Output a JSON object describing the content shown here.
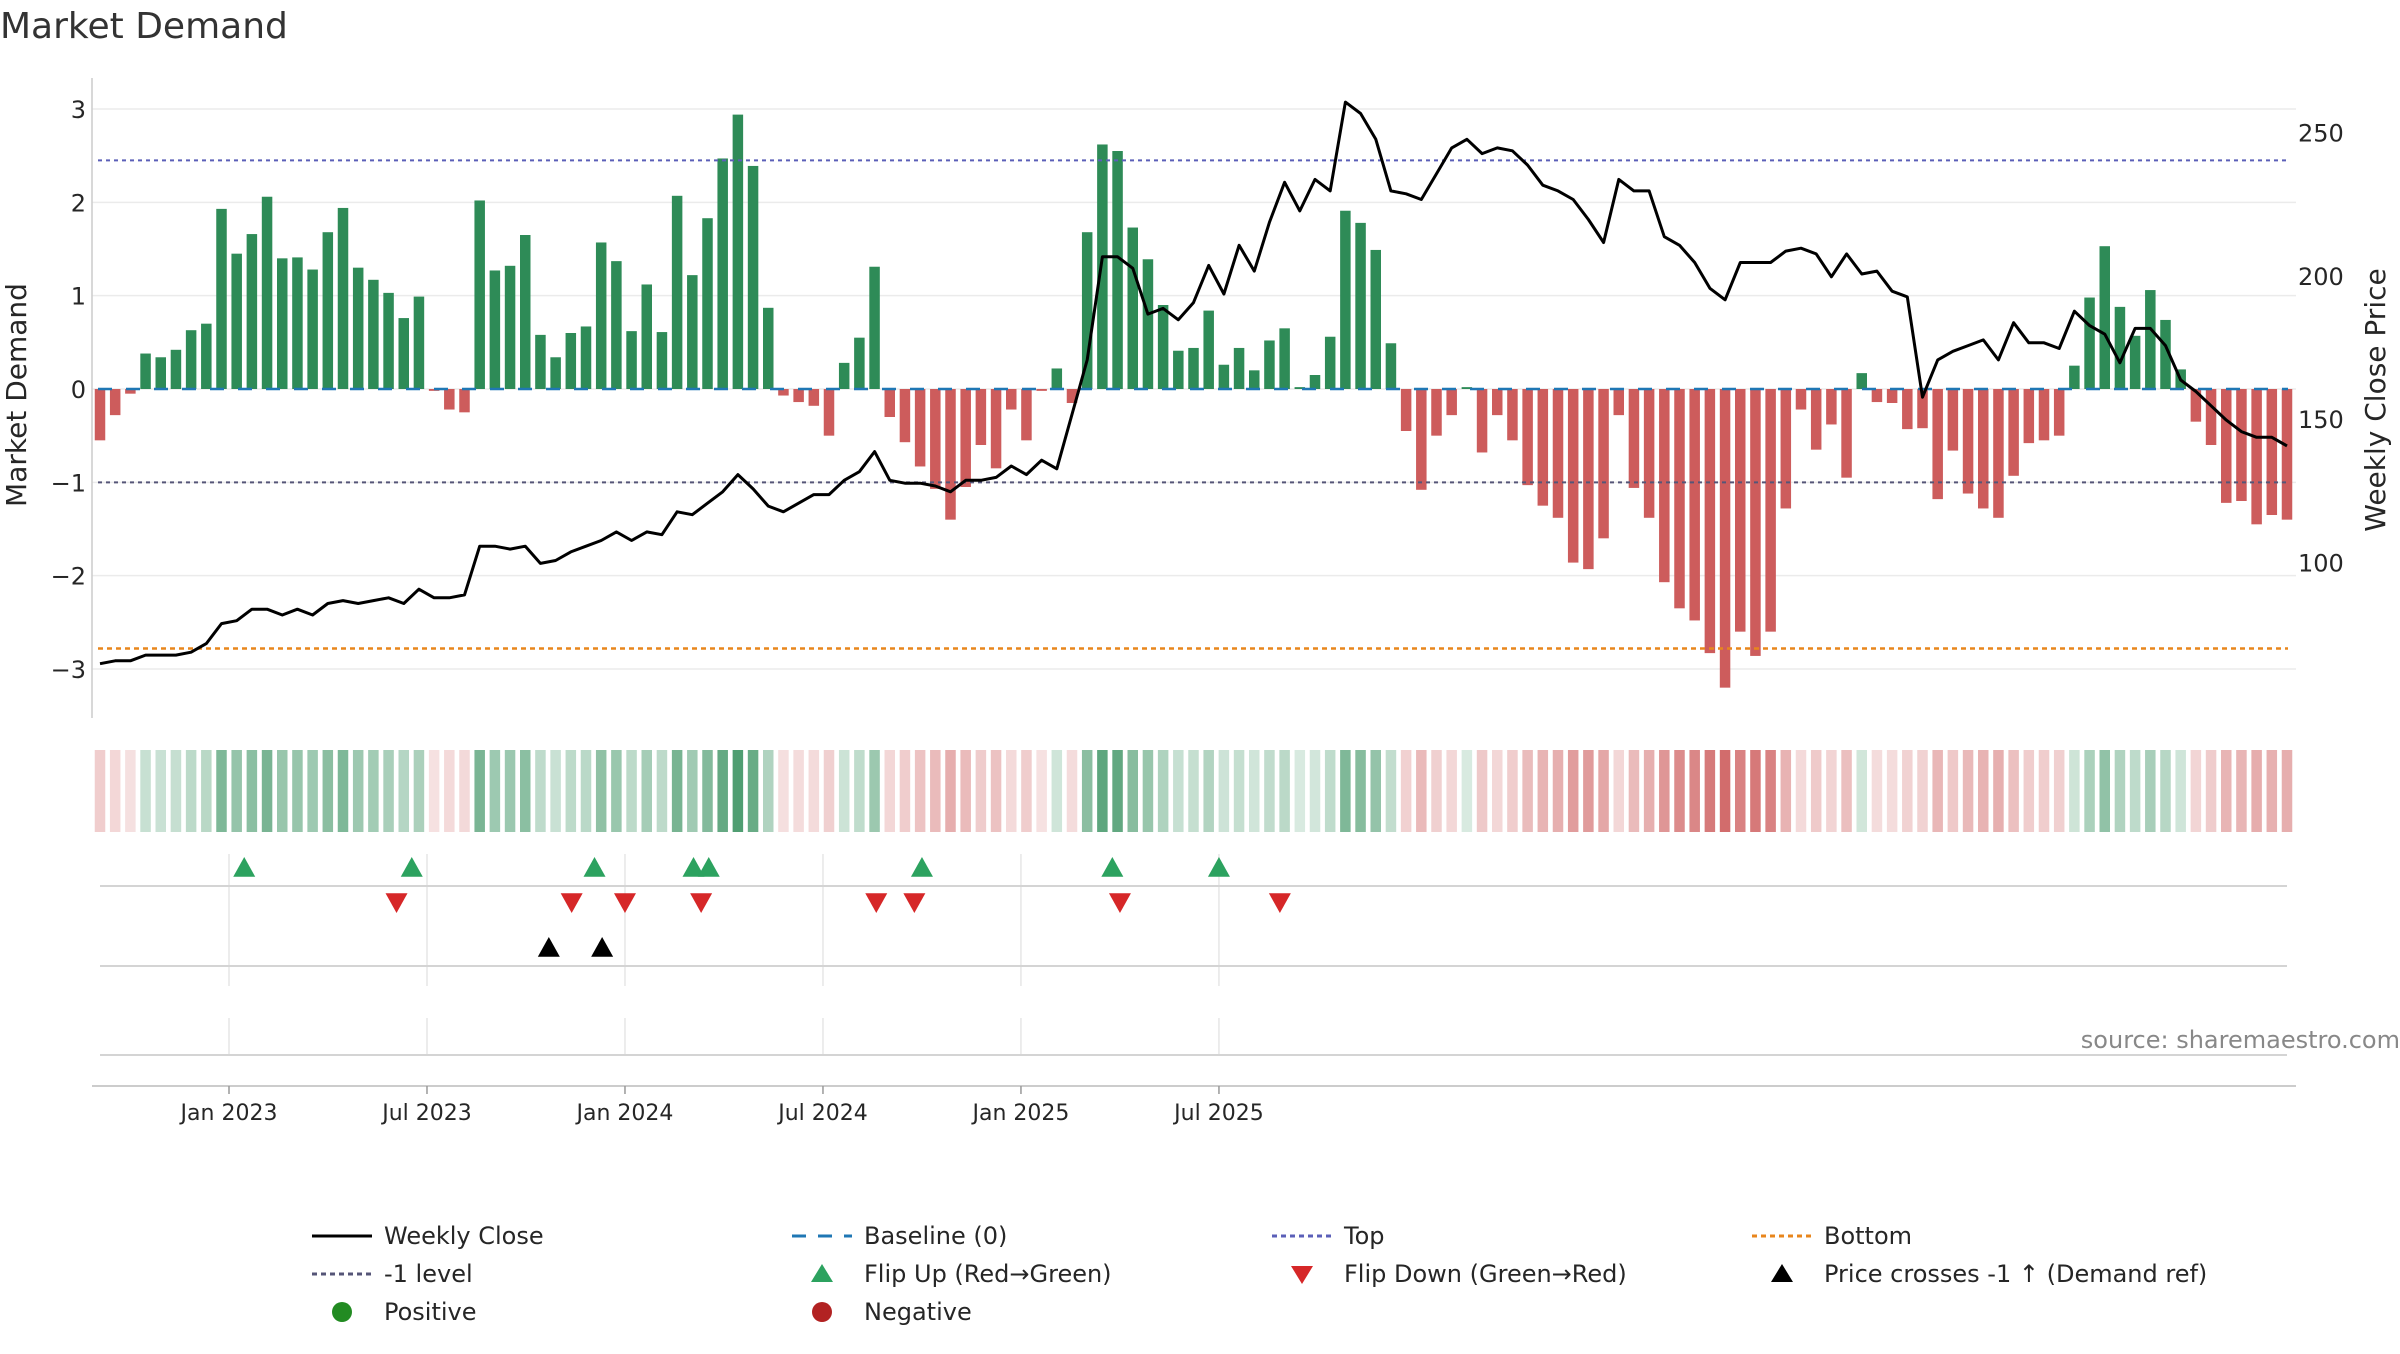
{
  "title": "Market Demand",
  "source": "source: sharemaestro.com",
  "chart_data": {
    "type": "bar",
    "title": "Market Demand",
    "ylabel_left": "Market Demand",
    "ylabel_right": "Weekly Close Price",
    "ylim_left": [
      -3.3,
      3.3
    ],
    "ylim_right": [
      60,
      268
    ],
    "yticks_left": [
      3,
      2,
      1,
      0,
      -1,
      -2,
      -3
    ],
    "ytick_labels_left": [
      "3",
      "2",
      "1",
      "0",
      "−1",
      "−2",
      "−3"
    ],
    "yticks_right": [
      250,
      200,
      150,
      100
    ],
    "ytick_labels_right": [
      "250",
      "200",
      "150",
      "100"
    ],
    "x_tick_weeks": [
      0,
      26,
      52,
      78,
      104,
      130
    ],
    "x_tick_labels": [
      "Jan 2023",
      "Jul 2023",
      "Jan 2024",
      "Jul 2024",
      "Jan 2025",
      "Jul 2025"
    ],
    "reference_lines": {
      "top": 2.45,
      "minus_one": -1,
      "bottom": -2.78,
      "baseline": 0
    },
    "demand": [
      -0.55,
      -0.28,
      -0.05,
      0.38,
      0.34,
      0.42,
      0.63,
      0.7,
      1.93,
      1.45,
      1.66,
      2.06,
      1.4,
      1.41,
      1.28,
      1.68,
      1.94,
      1.3,
      1.17,
      1.03,
      0.76,
      0.99,
      -0.02,
      -0.22,
      -0.25,
      2.02,
      1.27,
      1.32,
      1.65,
      0.58,
      0.34,
      0.6,
      0.67,
      1.57,
      1.37,
      0.62,
      1.12,
      0.61,
      2.07,
      1.22,
      1.83,
      2.47,
      2.94,
      2.39,
      0.87,
      -0.07,
      -0.14,
      -0.18,
      -0.5,
      0.28,
      0.55,
      1.31,
      -0.3,
      -0.57,
      -0.83,
      -1.07,
      -1.4,
      -1.05,
      -0.6,
      -0.85,
      -0.22,
      -0.55,
      -0.02,
      0.22,
      -0.15,
      1.68,
      2.62,
      2.55,
      1.73,
      1.39,
      0.9,
      0.41,
      0.44,
      0.84,
      0.26,
      0.44,
      0.2,
      0.52,
      0.65,
      0.02,
      0.15,
      0.56,
      1.91,
      1.78,
      1.49,
      0.49,
      -0.45,
      -1.08,
      -0.5,
      -0.28,
      0.02,
      -0.68,
      -0.28,
      -0.55,
      -1.03,
      -1.25,
      -1.38,
      -1.86,
      -1.93,
      -1.6,
      -0.28,
      -1.06,
      -1.38,
      -2.07,
      -2.35,
      -2.48,
      -2.83,
      -3.2,
      -2.6,
      -2.86,
      -2.6,
      -1.28,
      -0.22,
      -0.65,
      -0.38,
      -0.95,
      0.17,
      -0.14,
      -0.15,
      -0.43,
      -0.42,
      -1.18,
      -0.66,
      -1.12,
      -1.28,
      -1.38,
      -0.93,
      -0.58,
      -0.55,
      -0.5,
      0.25,
      0.98,
      1.53,
      0.88,
      0.57,
      1.06,
      0.74,
      0.21,
      -0.35,
      -0.6,
      -1.22,
      -1.2,
      -1.45,
      -1.35,
      -1.4
    ],
    "close": [
      65,
      66,
      66,
      68,
      68,
      68,
      69,
      72,
      79,
      80,
      84,
      84,
      82,
      84,
      82,
      86,
      87,
      86,
      87,
      88,
      86,
      91,
      88,
      88,
      89,
      106,
      106,
      105,
      106,
      100,
      101,
      104,
      106,
      108,
      111,
      108,
      111,
      110,
      118,
      117,
      121,
      125,
      131,
      126,
      120,
      118,
      121,
      124,
      124,
      129,
      132,
      139,
      129,
      128,
      128,
      127,
      125,
      129,
      129,
      130,
      134,
      131,
      136,
      133,
      152,
      171,
      207,
      207,
      203,
      187,
      189,
      185,
      191,
      204,
      194,
      211,
      202,
      219,
      233,
      223,
      234,
      230,
      261,
      257,
      248,
      230,
      229,
      227,
      236,
      245,
      248,
      243,
      245,
      244,
      239,
      232,
      230,
      227,
      220,
      212,
      234,
      230,
      230,
      214,
      211,
      205,
      196,
      192,
      205,
      205,
      205,
      209,
      210,
      208,
      200,
      208,
      201,
      202,
      195,
      193,
      158,
      171,
      174,
      176,
      178,
      171,
      184,
      177,
      177,
      175,
      188,
      183,
      180,
      170,
      182,
      182,
      176,
      164,
      160,
      155,
      150,
      146,
      144,
      144,
      141
    ],
    "flip_up_weeks": [
      2,
      24,
      48,
      61,
      63,
      91,
      116,
      130
    ],
    "flip_down_weeks": [
      22,
      45,
      52,
      62,
      85,
      90,
      117,
      138
    ],
    "price_cross_weeks": [
      42,
      49
    ],
    "legend": [
      {
        "label": "Weekly Close",
        "marker": "line-solid",
        "color": "#000000"
      },
      {
        "label": "Baseline (0)",
        "marker": "line-dashed",
        "color": "#1f77b4"
      },
      {
        "label": "Top",
        "marker": "line-dotted",
        "color": "#5b5fb8"
      },
      {
        "label": "Bottom",
        "marker": "line-dotted",
        "color": "#e8861c"
      },
      {
        "label": "-1 level",
        "marker": "line-dotted",
        "color": "#555577"
      },
      {
        "label": "Flip Up (Red→Green)",
        "marker": "triangle-up",
        "color": "#2ca25f"
      },
      {
        "label": "Flip Down (Green→Red)",
        "marker": "triangle-down",
        "color": "#d62728"
      },
      {
        "label": "Price crosses -1 ↑ (Demand ref)",
        "marker": "triangle-up",
        "color": "#000000"
      },
      {
        "label": "Positive",
        "marker": "circle",
        "color": "#228b22"
      },
      {
        "label": "Negative",
        "marker": "circle",
        "color": "#b22222"
      }
    ],
    "colors": {
      "positive_bar": "#2e8b57",
      "negative_bar": "#cd5c5c",
      "close_line": "#000000",
      "baseline": "#1f77b4",
      "top_line": "#5b5fb8",
      "minus_one_line": "#555577",
      "bottom_line": "#e8861c",
      "flip_up": "#2ca25f",
      "flip_down": "#d62728",
      "price_cross": "#000000",
      "grid": "#ebebeb",
      "axis": "#cccccc"
    }
  }
}
